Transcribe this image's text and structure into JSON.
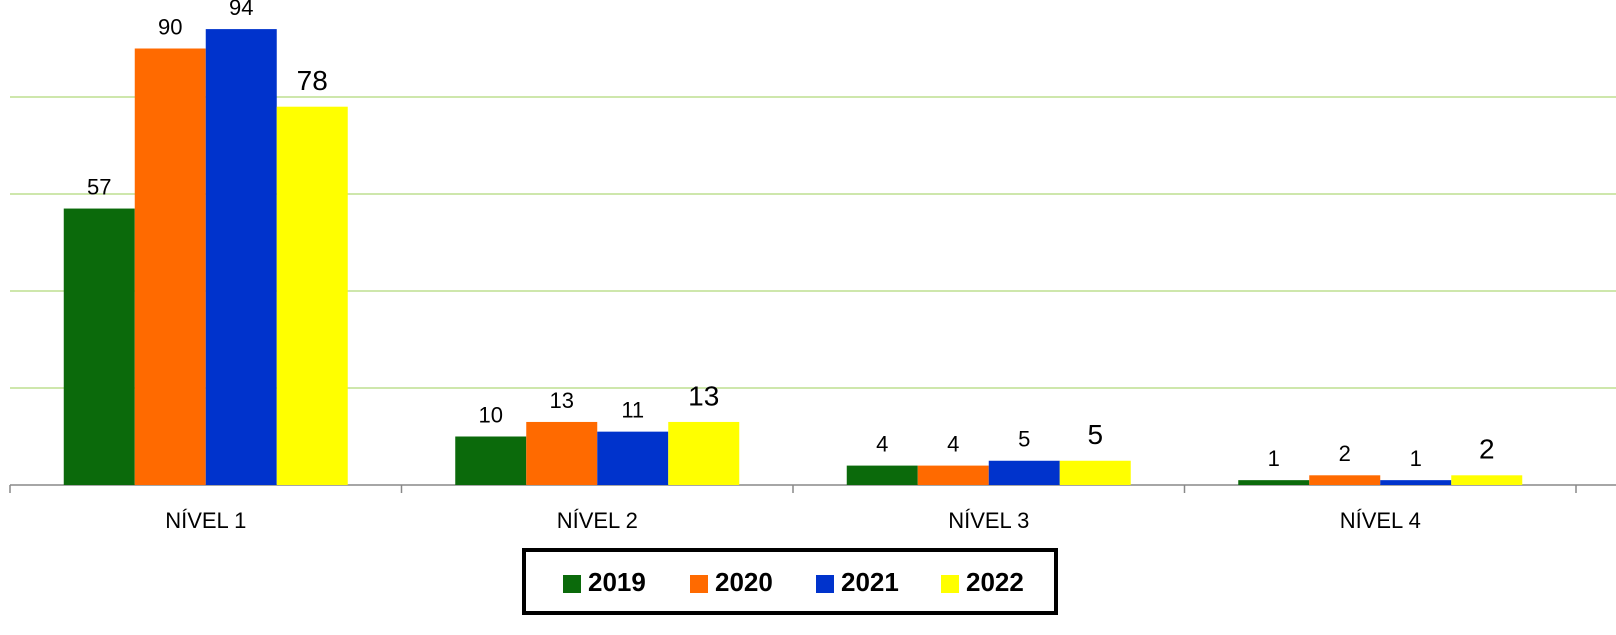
{
  "chart_data": {
    "type": "bar",
    "categories": [
      "NÍVEL 1",
      "NÍVEL 2",
      "NÍVEL 3",
      "NÍVEL 4"
    ],
    "series": [
      {
        "name": "2019",
        "color": "#0b6a0b",
        "values": [
          57,
          10,
          4,
          1
        ]
      },
      {
        "name": "2020",
        "color": "#ff6a00",
        "values": [
          90,
          13,
          4,
          2
        ]
      },
      {
        "name": "2021",
        "color": "#0033cc",
        "values": [
          94,
          11,
          5,
          1
        ]
      },
      {
        "name": "2022",
        "color": "#ffff00",
        "values": [
          78,
          13,
          5,
          2
        ]
      }
    ],
    "ylim": [
      0,
      100
    ],
    "yticks": [
      20,
      40,
      60,
      80
    ],
    "grid": true,
    "legend": "bottom"
  }
}
